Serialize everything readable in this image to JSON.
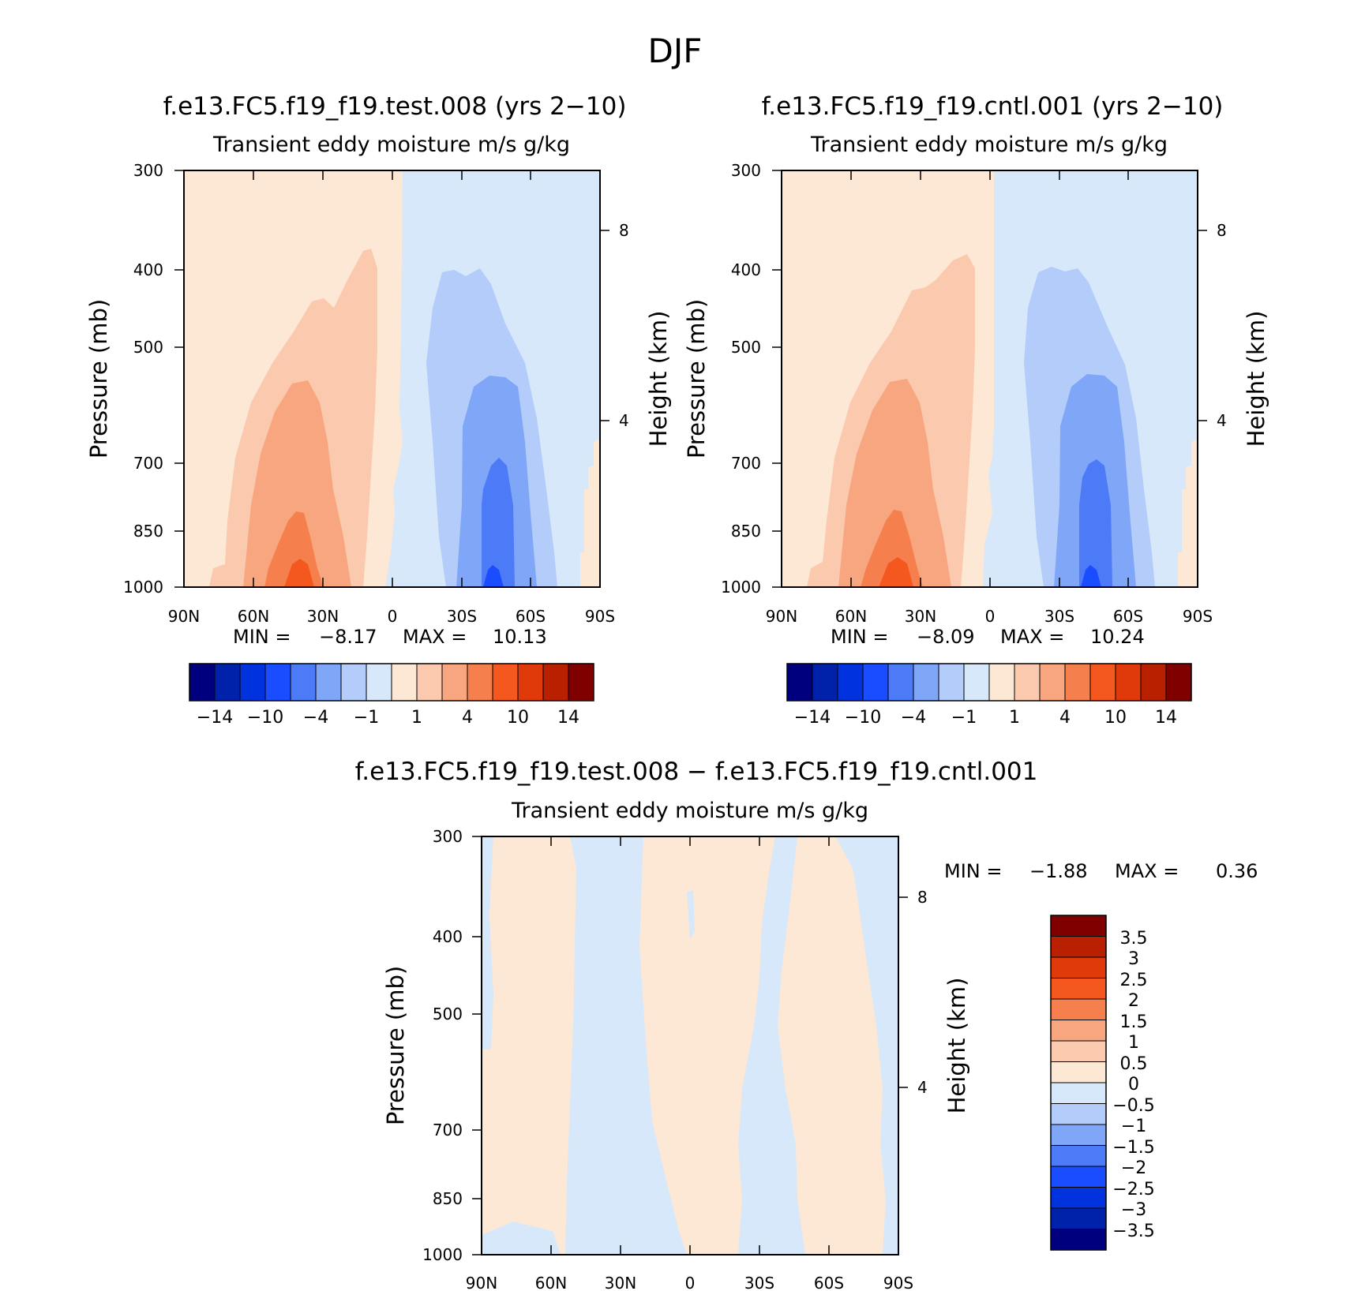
{
  "figure": {
    "title": "DJF"
  },
  "chart_data": [
    {
      "type": "heatmap",
      "title": "f.e13.FC5.f19_f19.test.008 (yrs 2-10)",
      "subtitle": "Transient eddy moisture m/s g/kg",
      "ylabel": "Pressure (mb)",
      "y2label": "Height (km)",
      "xticks": [
        "90N",
        "60N",
        "30N",
        "0",
        "30S",
        "60S",
        "90S"
      ],
      "yticks": [
        "300",
        "400",
        "500",
        "700",
        "850",
        "1000"
      ],
      "y2ticks": [
        "8",
        "4"
      ],
      "stats": {
        "min_label": "MIN =",
        "min": "-8.17",
        "max_label": "MAX =",
        "max": "10.13"
      },
      "colorbar": {
        "orientation": "horizontal",
        "labels": [
          "-14",
          "-10",
          "-4",
          "-1",
          "1",
          "4",
          "10",
          "14"
        ]
      }
    },
    {
      "type": "heatmap",
      "title": "f.e13.FC5.f19_f19.cntl.001 (yrs 2-10)",
      "subtitle": "Transient eddy moisture m/s g/kg",
      "ylabel": "Pressure (mb)",
      "y2label": "Height (km)",
      "xticks": [
        "90N",
        "60N",
        "30N",
        "0",
        "30S",
        "60S",
        "90S"
      ],
      "yticks": [
        "300",
        "400",
        "500",
        "700",
        "850",
        "1000"
      ],
      "y2ticks": [
        "8",
        "4"
      ],
      "stats": {
        "min_label": "MIN =",
        "min": "-8.09",
        "max_label": "MAX =",
        "max": "10.24"
      },
      "colorbar": {
        "orientation": "horizontal",
        "labels": [
          "-14",
          "-10",
          "-4",
          "-1",
          "1",
          "4",
          "10",
          "14"
        ]
      }
    },
    {
      "type": "heatmap",
      "title": "f.e13.FC5.f19_f19.test.008 - f.e13.FC5.f19_f19.cntl.001",
      "subtitle": "Transient eddy moisture m/s g/kg",
      "ylabel": "Pressure (mb)",
      "y2label": "Height (km)",
      "xticks": [
        "90N",
        "60N",
        "30N",
        "0",
        "30S",
        "60S",
        "90S"
      ],
      "yticks": [
        "300",
        "400",
        "500",
        "700",
        "850",
        "1000"
      ],
      "y2ticks": [
        "8",
        "4"
      ],
      "stats": {
        "min_label": "MIN =",
        "min": "-1.88",
        "max_label": "MAX =",
        "max": "0.36"
      },
      "colorbar": {
        "orientation": "vertical",
        "labels": [
          "3.5",
          "3",
          "2.5",
          "2",
          "1.5",
          "1",
          "0.5",
          "0",
          "-0.5",
          "-1",
          "-1.5",
          "-2",
          "-2.5",
          "-3",
          "-3.5"
        ]
      }
    }
  ],
  "colors": {
    "diverging": [
      "#00007f",
      "#0022aa",
      "#0033dd",
      "#1a4dff",
      "#4d7af7",
      "#80a6f7",
      "#b3ccfa",
      "#d6e8fa",
      "#fde8d6",
      "#fbc9ad",
      "#f8a680",
      "#f6804d",
      "#f5581f",
      "#e03a0a",
      "#b82000",
      "#800000"
    ]
  }
}
